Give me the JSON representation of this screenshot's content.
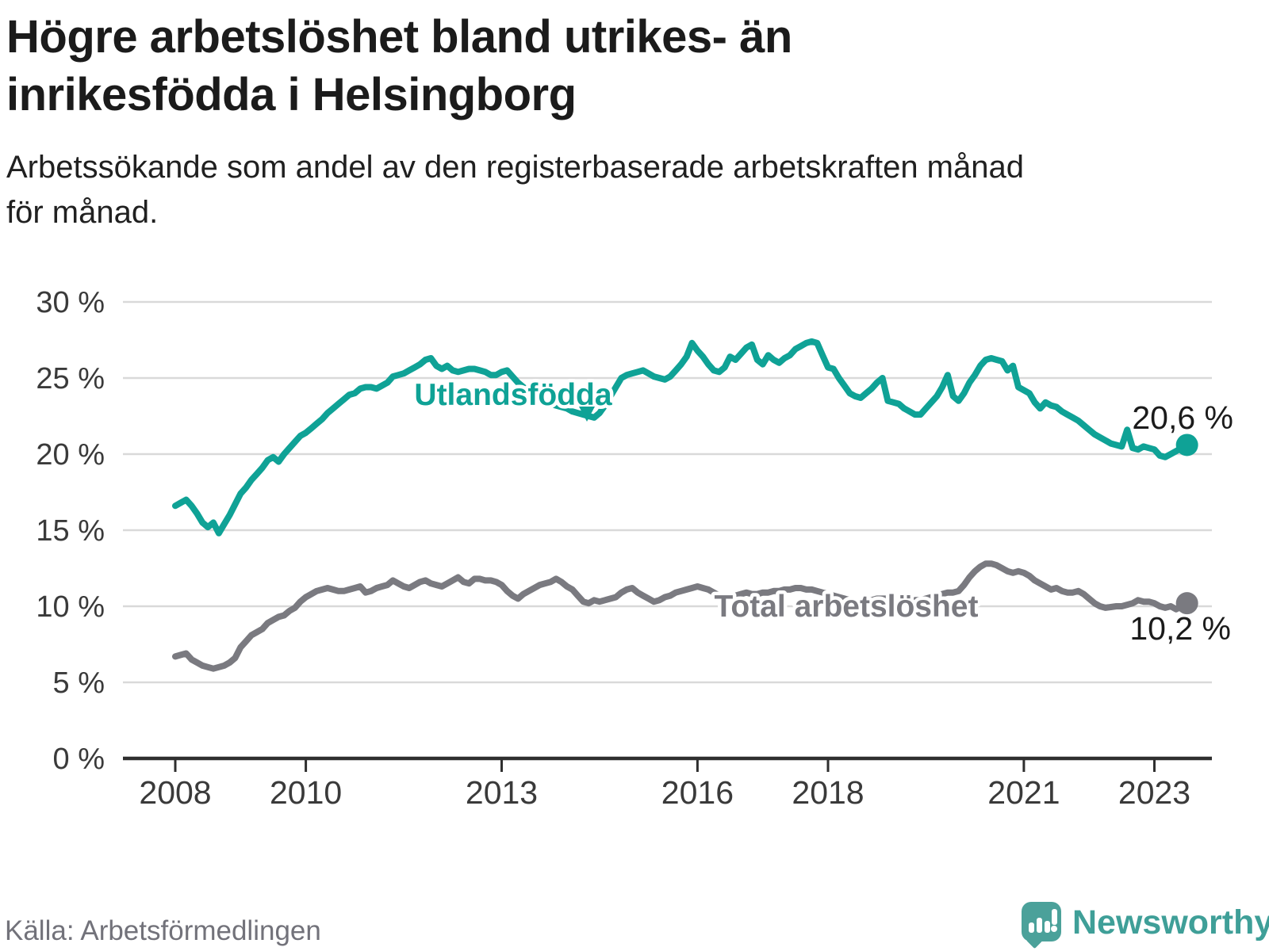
{
  "header": {
    "title": "Högre arbetslöshet bland utrikes- än inrikesfödda i Helsingborg",
    "title_lines": [
      "Högre arbetslöshet bland utrikes- än",
      "inrikesfödda i Helsingborg"
    ],
    "subtitle": "Arbetssökande som andel av den registerbaserade arbetskraften månad för månad.",
    "subtitle_lines": [
      "Arbetssökande som andel av den registerbaserade arbetskraften månad",
      "för månad."
    ]
  },
  "footer": {
    "source": "Källa: Arbetsförmedlingen",
    "logo_text": "Newsworthy"
  },
  "colors": {
    "series_foreign_born": "#0fa296",
    "series_total": "#7a7a80",
    "end_label_text": "#1b1b1b",
    "axis_line": "#2f2f2f",
    "tick_label": "#3a3a3a",
    "gridline": "#d9d9d9",
    "logo_teal": "#4ba19a",
    "logo_wordmark": "#3f9f98",
    "background": "#ffffff"
  },
  "chart_data": {
    "type": "line",
    "title": "Högre arbetslöshet bland utrikes- än inrikesfödda i Helsingborg",
    "subtitle": "Arbetssökande som andel av den registerbaserade arbetskraften månad för månad.",
    "source": "Källa: Arbetsförmedlingen",
    "unit": "%",
    "grid": true,
    "xlim": [
      2007.2,
      2023.9
    ],
    "ylim": [
      0,
      30
    ],
    "x_axis": {
      "tick_values": [
        2008,
        2010,
        2013,
        2016,
        2018,
        2021,
        2023
      ],
      "tick_labels": [
        "2008",
        "2010",
        "2013",
        "2016",
        "2018",
        "2021",
        "2023"
      ]
    },
    "y_axis": {
      "tick_values": [
        30,
        25,
        20,
        15,
        10,
        5,
        0
      ],
      "tick_labels": [
        "30 %",
        "25 %",
        "20 %",
        "15 %",
        "10 %",
        "5 %",
        "0 %"
      ]
    },
    "time": {
      "start_year": 2008,
      "start_month": 1,
      "step_months": 1
    },
    "series": [
      {
        "name": "Utlandsfödda",
        "color": "#0fa296",
        "end_value": 20.6,
        "end_label": "20,6 %",
        "values": [
          16.6,
          16.8,
          17.0,
          16.6,
          16.1,
          15.5,
          15.2,
          15.5,
          14.8,
          15.4,
          16.0,
          16.7,
          17.4,
          17.8,
          18.3,
          18.7,
          19.1,
          19.6,
          19.8,
          19.5,
          20.0,
          20.4,
          20.8,
          21.2,
          21.4,
          21.7,
          22.0,
          22.3,
          22.7,
          23.0,
          23.3,
          23.6,
          23.9,
          24.0,
          24.3,
          24.4,
          24.4,
          24.3,
          24.5,
          24.7,
          25.1,
          25.2,
          25.3,
          25.5,
          25.7,
          25.9,
          26.2,
          26.3,
          25.8,
          25.6,
          25.8,
          25.5,
          25.4,
          25.5,
          25.6,
          25.6,
          25.5,
          25.4,
          25.2,
          25.2,
          25.4,
          25.5,
          25.1,
          24.7,
          24.4,
          24.1,
          23.9,
          23.7,
          23.5,
          23.3,
          23.2,
          23.1,
          23.0,
          22.8,
          22.7,
          22.6,
          22.5,
          22.4,
          22.7,
          23.2,
          23.8,
          24.4,
          25.0,
          25.2,
          25.3,
          25.4,
          25.5,
          25.3,
          25.1,
          25.0,
          24.9,
          25.1,
          25.5,
          25.9,
          26.4,
          27.3,
          26.8,
          26.4,
          25.9,
          25.5,
          25.4,
          25.7,
          26.4,
          26.2,
          26.6,
          27.0,
          27.2,
          26.2,
          25.9,
          26.5,
          26.2,
          26.0,
          26.3,
          26.5,
          26.9,
          27.1,
          27.3,
          27.4,
          27.3,
          26.5,
          25.7,
          25.6,
          25.0,
          24.5,
          24.0,
          23.8,
          23.7,
          24.0,
          24.3,
          24.7,
          25.0,
          23.5,
          23.4,
          23.3,
          23.0,
          22.8,
          22.6,
          22.6,
          23.0,
          23.4,
          23.8,
          24.4,
          25.2,
          23.8,
          23.5,
          24.0,
          24.7,
          25.2,
          25.8,
          26.2,
          26.3,
          26.2,
          26.1,
          25.5,
          25.8,
          24.4,
          24.2,
          24.0,
          23.4,
          23.0,
          23.4,
          23.2,
          23.1,
          22.8,
          22.6,
          22.4,
          22.2,
          21.9,
          21.6,
          21.3,
          21.1,
          20.9,
          20.7,
          20.6,
          20.5,
          21.6,
          20.4,
          20.3,
          20.5,
          20.4,
          20.3,
          19.9,
          19.8,
          20.0,
          20.2,
          20.4,
          20.6
        ]
      },
      {
        "name": "Total arbetslöshet",
        "color": "#7a7a80",
        "end_value": 10.2,
        "end_label": "10,2 %",
        "values": [
          6.7,
          6.8,
          6.9,
          6.5,
          6.3,
          6.1,
          6.0,
          5.9,
          6.0,
          6.1,
          6.3,
          6.6,
          7.3,
          7.7,
          8.1,
          8.3,
          8.5,
          8.9,
          9.1,
          9.3,
          9.4,
          9.7,
          9.9,
          10.3,
          10.6,
          10.8,
          11.0,
          11.1,
          11.2,
          11.1,
          11.0,
          11.0,
          11.1,
          11.2,
          11.3,
          10.9,
          11.0,
          11.2,
          11.3,
          11.4,
          11.7,
          11.5,
          11.3,
          11.2,
          11.4,
          11.6,
          11.7,
          11.5,
          11.4,
          11.3,
          11.5,
          11.7,
          11.9,
          11.6,
          11.5,
          11.8,
          11.8,
          11.7,
          11.7,
          11.6,
          11.4,
          11.0,
          10.7,
          10.5,
          10.8,
          11.0,
          11.2,
          11.4,
          11.5,
          11.6,
          11.8,
          11.6,
          11.3,
          11.1,
          10.7,
          10.3,
          10.2,
          10.4,
          10.3,
          10.4,
          10.5,
          10.6,
          10.9,
          11.1,
          11.2,
          10.9,
          10.7,
          10.5,
          10.3,
          10.4,
          10.6,
          10.7,
          10.9,
          11.0,
          11.1,
          11.2,
          11.3,
          11.2,
          11.1,
          10.9,
          10.7,
          10.6,
          10.6,
          10.7,
          10.8,
          10.9,
          10.8,
          10.8,
          10.9,
          10.9,
          11.0,
          11.0,
          11.1,
          11.1,
          11.2,
          11.2,
          11.1,
          11.1,
          11.0,
          10.9,
          10.8,
          10.7,
          10.6,
          10.5,
          10.4,
          10.3,
          10.3,
          10.4,
          10.4,
          10.5,
          10.5,
          10.5,
          10.4,
          10.4,
          10.3,
          10.3,
          10.4,
          10.4,
          10.5,
          10.6,
          10.7,
          10.8,
          10.9,
          10.9,
          11.0,
          11.4,
          11.9,
          12.3,
          12.6,
          12.8,
          12.8,
          12.7,
          12.5,
          12.3,
          12.2,
          12.3,
          12.2,
          12.0,
          11.7,
          11.5,
          11.3,
          11.1,
          11.2,
          11.0,
          10.9,
          10.9,
          11.0,
          10.8,
          10.5,
          10.2,
          10.0,
          9.9,
          9.95,
          10.0,
          10.0,
          10.1,
          10.2,
          10.4,
          10.3,
          10.3,
          10.2,
          10.0,
          9.9,
          10.0,
          9.8,
          10.0,
          10.2
        ]
      }
    ],
    "legend_position": "inline-labels"
  }
}
